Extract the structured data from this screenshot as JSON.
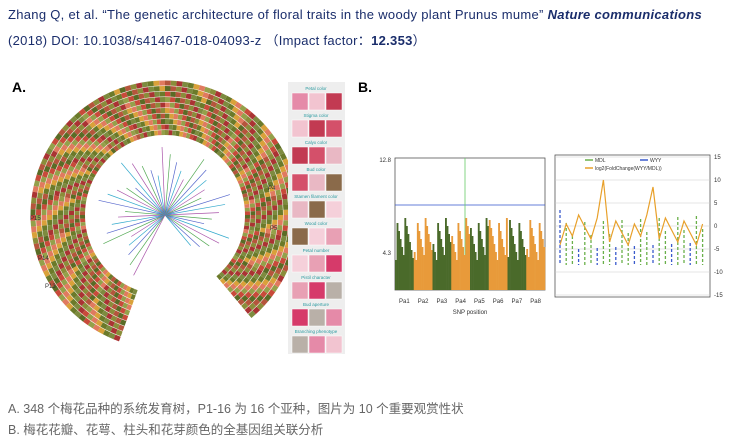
{
  "header": {
    "citation": "Zhang Q, et al. “The genetic architecture of floral traits in the woody plant Prunus mume”",
    "journal": "Nature communications",
    "details": "(2018) DOI: 10.1038/s41467-018-04093-z",
    "impact_prefix": "（Impact factor：",
    "impact": "12.353",
    "impact_suffix": "）"
  },
  "panel_a": {
    "label": "A.",
    "subpops": [
      "P15",
      "P14",
      "P13",
      "P4",
      "P5"
    ],
    "traits": [
      "Petal color",
      "Stigma color",
      "Calyx color",
      "Bud color",
      "Stamen filament color",
      "Wood color",
      "Petal number",
      "Pistil character",
      "Bud aperture",
      "Branching phenotype"
    ]
  },
  "panel_b": {
    "label": "B.",
    "manhattan": {
      "yticks": [
        "12.8",
        "4.3"
      ],
      "chromosomes": [
        "Pa1",
        "Pa2",
        "Pa3",
        "Pa4",
        "Pa5",
        "Pa6",
        "Pa7",
        "Pa8"
      ],
      "xlabel": "SNP position"
    },
    "expression": {
      "legend": [
        "MDL",
        "WYY",
        "log2(FoldChange(WYY/MDL))"
      ],
      "yticks": [
        "15",
        "10",
        "5",
        "0",
        "-5",
        "-10",
        "-15"
      ]
    }
  },
  "captions": [
    "A. 348 个梅花品种的系统发育树，P1-16 为 16 个亚种，图片为 10 个重要观赏性状",
    "B. 梅花花瓣、花萼、柱头和花芽颜色的全基因组关联分析"
  ]
}
